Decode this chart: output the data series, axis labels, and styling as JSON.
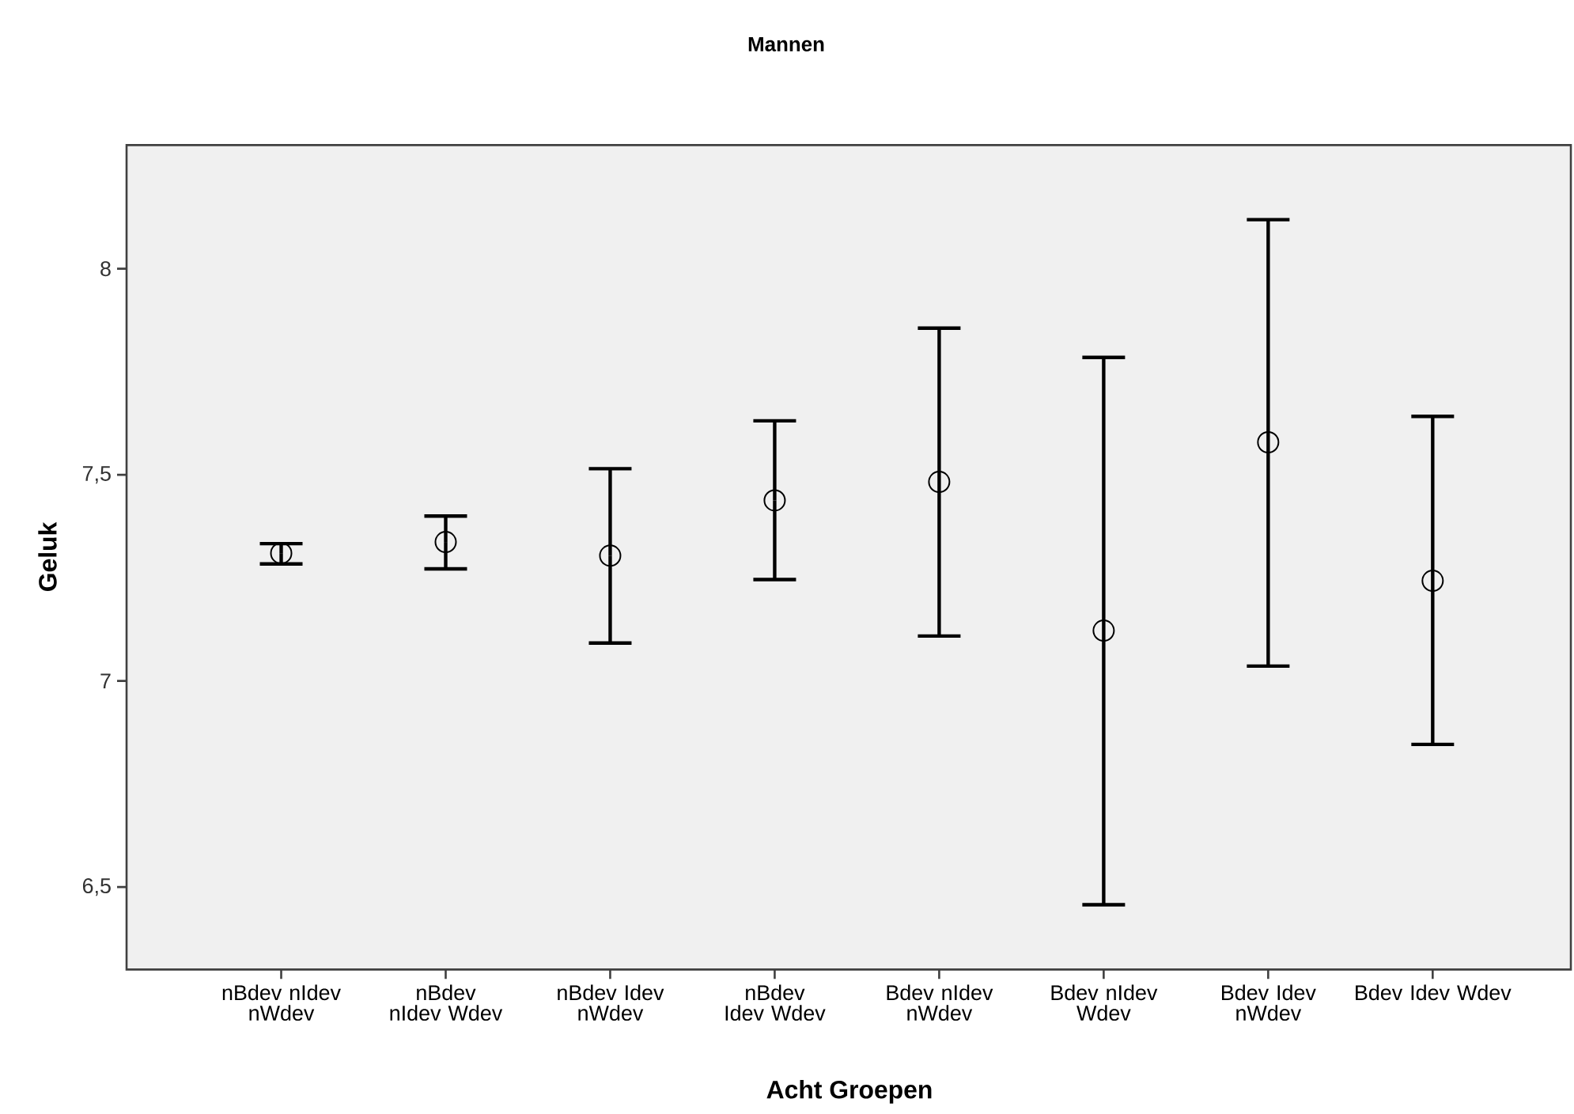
{
  "chart_data": {
    "type": "scatter",
    "title": "Mannen",
    "xlabel": "Acht Groepen",
    "ylabel": "Geluk",
    "categories": [
      "nBdev nIdev nWdev",
      "nBdev nIdev Wdev",
      "nBdev Idev nWdev",
      "nBdev Idev Wdev",
      "Bdev nIdev nWdev",
      "Bdev nIdev Wdev",
      "Bdev Idev nWdev",
      "Bdev Idev Wdev"
    ],
    "values": [
      7.31,
      7.337,
      7.304,
      7.438,
      7.483,
      7.122,
      7.579,
      7.243
    ],
    "errors": [
      [
        7.284,
        7.333
      ],
      [
        7.272,
        7.4
      ],
      [
        7.092,
        7.515
      ],
      [
        7.246,
        7.631
      ],
      [
        7.109,
        7.856
      ],
      [
        6.457,
        7.785
      ],
      [
        7.036,
        8.119
      ],
      [
        6.846,
        7.642
      ]
    ],
    "color": "#000000",
    "marker": "circle",
    "ylim": [
      6.3,
      8.3
    ],
    "yticks": [
      {
        "value": 6.5,
        "label": "6,5"
      },
      7,
      {
        "value": 7.5,
        "label": "7,5"
      },
      8
    ]
  }
}
